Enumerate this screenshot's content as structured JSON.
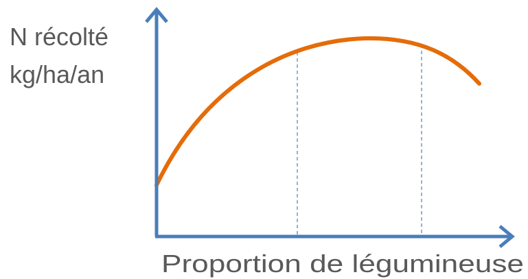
{
  "y_axis_label": {
    "lines": [
      "N récolté",
      "kg/ha/an"
    ]
  },
  "x_axis_label": "Proportion de légumineuse"
}
